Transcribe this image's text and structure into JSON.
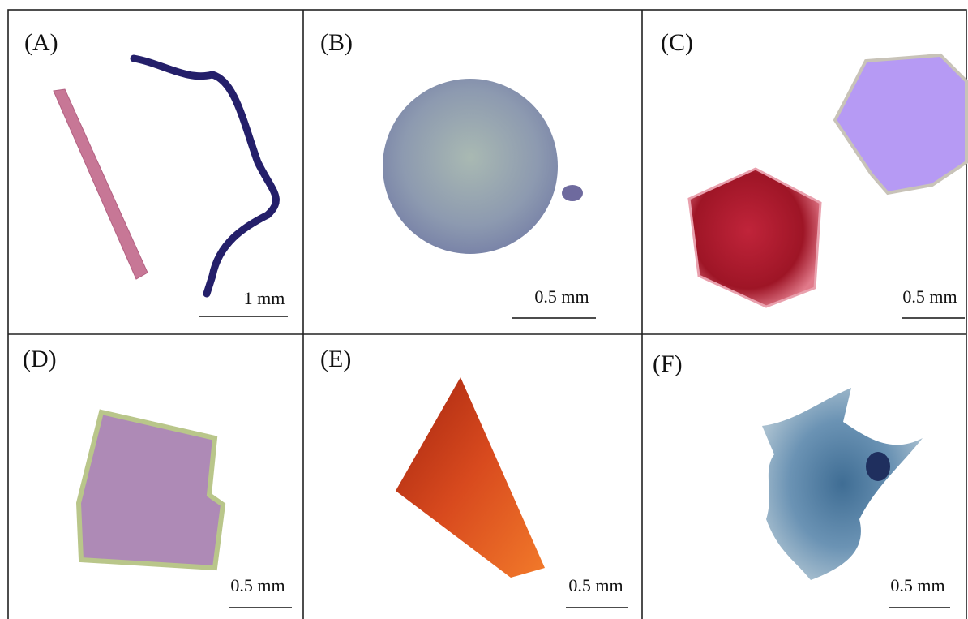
{
  "panels": [
    {
      "label": "(A)",
      "scale": "1 mm"
    },
    {
      "label": "(B)",
      "scale": "0.5 mm"
    },
    {
      "label": "(C)",
      "scale": "0.5 mm"
    },
    {
      "label": "(D)",
      "scale": "0.5 mm"
    },
    {
      "label": "(E)",
      "scale": "0.5 mm"
    },
    {
      "label": "(F)",
      "scale": "0.5 mm"
    }
  ]
}
